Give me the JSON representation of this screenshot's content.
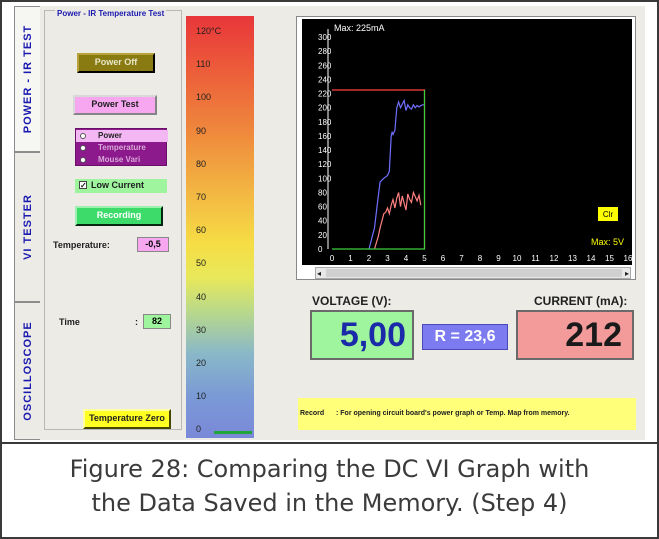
{
  "tabs": [
    {
      "label": "POWER - IR TEST",
      "active": true
    },
    {
      "label": "VI TESTER",
      "active": false
    },
    {
      "label": "OSCILLOSCOPE",
      "active": false
    }
  ],
  "panel": {
    "title": "Power - IR Temperature Test",
    "power_off_label": "Power Off",
    "power_test_label": "Power Test",
    "radio_options": [
      {
        "label": "Power",
        "selected": true
      },
      {
        "label": "Temperature",
        "selected": false
      },
      {
        "label": "Mouse Vari",
        "selected": false
      }
    ],
    "low_current_label": "Low Current",
    "low_current_checked": true,
    "recording_label": "Recording",
    "temperature_label": "Temperature:",
    "temperature_value": "-0,5",
    "time_label": "Time",
    "time_colon": ":",
    "time_value": "82",
    "temp_zero_label": "Temperature Zero"
  },
  "thermo": {
    "ticks": [
      "120°C",
      "110",
      "100",
      "90",
      "80",
      "70",
      "60",
      "50",
      "40",
      "30",
      "20",
      "10",
      "0"
    ],
    "level_fraction": 0.0
  },
  "graph": {
    "max_label": "Max: 225mA",
    "max_v_label": "Max: 5V",
    "clr_label": "Clr",
    "scroll_left": "◂",
    "scroll_right": "▸"
  },
  "readouts": {
    "voltage_label": "VOLTAGE (V):",
    "voltage_value": "5,00",
    "resistance_value": "R = 23,6",
    "current_label": "CURRENT (mA):",
    "current_value": "212"
  },
  "record": {
    "label": "Record",
    "text": ": For opening circuit board's power graph or Temp. Map from memory."
  },
  "caption": {
    "line1": "Figure 28: Comparing the DC VI Graph with",
    "line2": "the Data Saved in the Memory. (Step 4)"
  },
  "chart_data": {
    "type": "line",
    "xlabel": "",
    "ylabel": "",
    "xlim": [
      0,
      16
    ],
    "ylim": [
      0,
      300
    ],
    "x_ticks": [
      0,
      1,
      2,
      3,
      4,
      5,
      6,
      7,
      8,
      9,
      10,
      11,
      12,
      13,
      14,
      15,
      16
    ],
    "y_ticks": [
      0,
      20,
      40,
      60,
      80,
      100,
      120,
      140,
      160,
      180,
      200,
      220,
      240,
      260,
      280,
      300
    ],
    "grid": false,
    "series": [
      {
        "color": "#7070ff",
        "x": [
          2.0,
          2.3,
          2.5,
          2.6,
          2.8,
          3.0,
          3.1,
          3.2,
          3.25,
          3.3,
          3.4,
          3.5,
          3.6,
          3.7,
          3.8,
          3.9,
          4.0,
          4.1,
          4.2,
          4.3,
          4.4,
          4.5,
          4.6,
          4.7,
          4.8,
          4.9,
          5.0
        ],
        "y": [
          0,
          30,
          75,
          95,
          100,
          104,
          110,
          160,
          165,
          162,
          168,
          200,
          208,
          200,
          205,
          210,
          196,
          204,
          200,
          198,
          204,
          200,
          203,
          201,
          203,
          204,
          204
        ]
      },
      {
        "color": "#ff8080",
        "x": [
          2.3,
          2.5,
          2.6,
          2.7,
          2.8,
          2.9,
          3.0,
          3.1,
          3.2,
          3.3,
          3.4,
          3.5,
          3.6,
          3.7,
          3.8,
          3.9,
          4.0,
          4.1,
          4.2,
          4.3,
          4.4,
          4.5,
          4.6,
          4.7,
          4.8
        ],
        "y": [
          0,
          18,
          30,
          40,
          50,
          52,
          58,
          50,
          62,
          70,
          58,
          72,
          80,
          60,
          75,
          65,
          55,
          78,
          70,
          66,
          80,
          74,
          68,
          76,
          62
        ]
      },
      {
        "color": "#ff4444",
        "x": [
          0,
          5.0,
          5.0
        ],
        "y": [
          225,
          225,
          0
        ]
      },
      {
        "color": "#3cd03c",
        "x": [
          0,
          5.0,
          5.0
        ],
        "y": [
          0,
          0,
          225
        ]
      }
    ]
  }
}
